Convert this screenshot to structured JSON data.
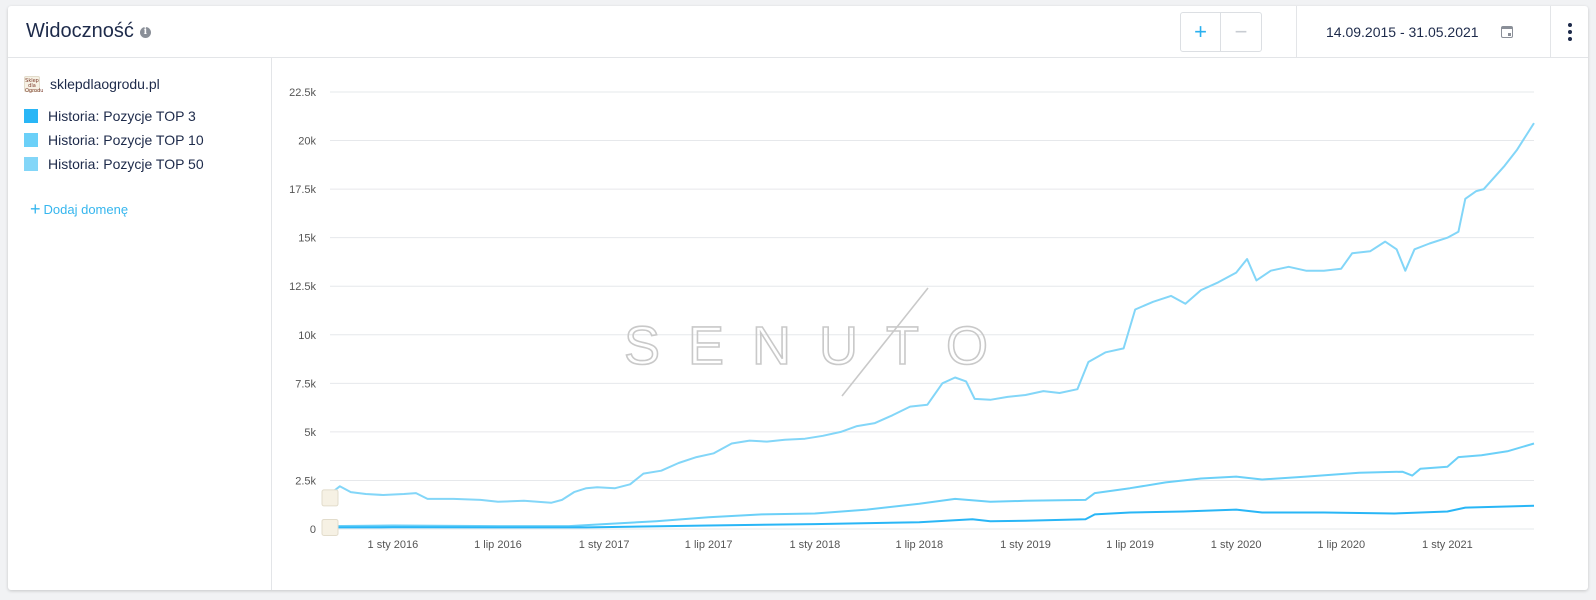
{
  "header": {
    "title": "Widoczność",
    "date_range": "14.09.2015 - 31.05.2021",
    "zoom_in": "+",
    "zoom_out": "−"
  },
  "sidebar": {
    "domain": "sklepdlaogrodu.pl",
    "favicon_text": "Sklep dla Ogrodu",
    "legend": [
      {
        "label": "Historia: Pozycje TOP 3",
        "color": "#29b6f6"
      },
      {
        "label": "Historia: Pozycje TOP 10",
        "color": "#6bd0f8"
      },
      {
        "label": "Historia: Pozycje TOP 50",
        "color": "#83d6f8"
      }
    ],
    "add_domain": "Dodaj domenę"
  },
  "chart_data": {
    "type": "line",
    "title": "Widoczność",
    "watermark": "SENUTO",
    "ylim": [
      0,
      22500
    ],
    "yticks": [
      0,
      2500,
      5000,
      7500,
      10000,
      12500,
      15000,
      17500,
      20000,
      22500
    ],
    "ytick_labels": [
      "0",
      "2.5k",
      "5k",
      "7.5k",
      "10k",
      "12.5k",
      "15k",
      "17.5k",
      "20k",
      "22.5k"
    ],
    "xlim": [
      "2015-09-14",
      "2021-05-31"
    ],
    "xticks": [
      "2016-01-01",
      "2016-07-01",
      "2017-01-01",
      "2017-07-01",
      "2018-01-01",
      "2018-07-01",
      "2019-01-01",
      "2019-07-01",
      "2020-01-01",
      "2020-07-01",
      "2021-01-01"
    ],
    "xtick_labels": [
      "1 sty 2016",
      "1 lip 2016",
      "1 sty 2017",
      "1 lip 2017",
      "1 sty 2018",
      "1 lip 2018",
      "1 sty 2019",
      "1 lip 2019",
      "1 sty 2020",
      "1 lip 2020",
      "1 sty 2021"
    ],
    "grid": true,
    "series": [
      {
        "name": "Historia: Pozycje TOP 50",
        "color": "#83d6f8",
        "points": [
          [
            "2015-09-14",
            1800
          ],
          [
            "2015-10-01",
            2200
          ],
          [
            "2015-10-20",
            1900
          ],
          [
            "2015-11-15",
            1800
          ],
          [
            "2015-12-15",
            1750
          ],
          [
            "2016-01-20",
            1800
          ],
          [
            "2016-02-10",
            1850
          ],
          [
            "2016-03-01",
            1550
          ],
          [
            "2016-04-15",
            1550
          ],
          [
            "2016-06-01",
            1500
          ],
          [
            "2016-07-01",
            1400
          ],
          [
            "2016-08-15",
            1450
          ],
          [
            "2016-10-01",
            1350
          ],
          [
            "2016-10-20",
            1500
          ],
          [
            "2016-11-10",
            1900
          ],
          [
            "2016-12-01",
            2100
          ],
          [
            "2016-12-20",
            2150
          ],
          [
            "2017-01-20",
            2100
          ],
          [
            "2017-02-15",
            2300
          ],
          [
            "2017-03-10",
            2850
          ],
          [
            "2017-04-10",
            3000
          ],
          [
            "2017-05-10",
            3400
          ],
          [
            "2017-06-10",
            3700
          ],
          [
            "2017-07-10",
            3900
          ],
          [
            "2017-08-10",
            4400
          ],
          [
            "2017-09-10",
            4550
          ],
          [
            "2017-10-10",
            4500
          ],
          [
            "2017-11-10",
            4600
          ],
          [
            "2017-12-15",
            4650
          ],
          [
            "2018-01-15",
            4800
          ],
          [
            "2018-02-15",
            5000
          ],
          [
            "2018-03-15",
            5300
          ],
          [
            "2018-04-15",
            5450
          ],
          [
            "2018-05-15",
            5850
          ],
          [
            "2018-06-15",
            6300
          ],
          [
            "2018-07-15",
            6400
          ],
          [
            "2018-08-10",
            7500
          ],
          [
            "2018-09-01",
            7800
          ],
          [
            "2018-09-20",
            7600
          ],
          [
            "2018-10-05",
            6700
          ],
          [
            "2018-11-01",
            6650
          ],
          [
            "2018-12-01",
            6800
          ],
          [
            "2019-01-01",
            6900
          ],
          [
            "2019-02-01",
            7100
          ],
          [
            "2019-03-01",
            7000
          ],
          [
            "2019-04-01",
            7200
          ],
          [
            "2019-04-20",
            8600
          ],
          [
            "2019-05-20",
            9100
          ],
          [
            "2019-06-20",
            9300
          ],
          [
            "2019-07-10",
            11300
          ],
          [
            "2019-08-10",
            11700
          ],
          [
            "2019-09-10",
            12000
          ],
          [
            "2019-10-05",
            11600
          ],
          [
            "2019-11-01",
            12300
          ],
          [
            "2019-12-01",
            12700
          ],
          [
            "2020-01-01",
            13200
          ],
          [
            "2020-01-20",
            13900
          ],
          [
            "2020-02-05",
            12800
          ],
          [
            "2020-03-01",
            13300
          ],
          [
            "2020-04-01",
            13500
          ],
          [
            "2020-05-01",
            13300
          ],
          [
            "2020-06-01",
            13300
          ],
          [
            "2020-07-01",
            13400
          ],
          [
            "2020-07-20",
            14200
          ],
          [
            "2020-08-20",
            14300
          ],
          [
            "2020-09-15",
            14800
          ],
          [
            "2020-10-05",
            14400
          ],
          [
            "2020-10-20",
            13300
          ],
          [
            "2020-11-05",
            14400
          ],
          [
            "2020-12-01",
            14700
          ],
          [
            "2021-01-01",
            15000
          ],
          [
            "2021-01-20",
            15300
          ],
          [
            "2021-02-01",
            17000
          ],
          [
            "2021-02-20",
            17400
          ],
          [
            "2021-03-05",
            17500
          ],
          [
            "2021-03-20",
            18000
          ],
          [
            "2021-04-10",
            18700
          ],
          [
            "2021-05-01",
            19500
          ],
          [
            "2021-05-31",
            20900
          ]
        ]
      },
      {
        "name": "Historia: Pozycje TOP 10",
        "color": "#6bd0f8",
        "points": [
          [
            "2015-09-14",
            150
          ],
          [
            "2016-01-01",
            180
          ],
          [
            "2016-07-01",
            150
          ],
          [
            "2016-11-01",
            150
          ],
          [
            "2017-01-01",
            250
          ],
          [
            "2017-04-01",
            400
          ],
          [
            "2017-07-01",
            600
          ],
          [
            "2017-10-01",
            750
          ],
          [
            "2018-01-01",
            800
          ],
          [
            "2018-04-01",
            1000
          ],
          [
            "2018-07-01",
            1300
          ],
          [
            "2018-09-01",
            1550
          ],
          [
            "2018-11-01",
            1400
          ],
          [
            "2019-01-01",
            1450
          ],
          [
            "2019-04-15",
            1500
          ],
          [
            "2019-05-01",
            1850
          ],
          [
            "2019-07-01",
            2100
          ],
          [
            "2019-09-01",
            2400
          ],
          [
            "2019-11-01",
            2600
          ],
          [
            "2020-01-01",
            2700
          ],
          [
            "2020-02-15",
            2550
          ],
          [
            "2020-05-01",
            2700
          ],
          [
            "2020-08-01",
            2900
          ],
          [
            "2020-10-15",
            2950
          ],
          [
            "2020-11-01",
            2750
          ],
          [
            "2020-11-15",
            3100
          ],
          [
            "2021-01-01",
            3200
          ],
          [
            "2021-01-20",
            3700
          ],
          [
            "2021-03-01",
            3800
          ],
          [
            "2021-04-15",
            4000
          ],
          [
            "2021-05-31",
            4400
          ]
        ]
      },
      {
        "name": "Historia: Pozycje TOP 3",
        "color": "#29b6f6",
        "points": [
          [
            "2015-09-14",
            80
          ],
          [
            "2016-01-01",
            90
          ],
          [
            "2016-07-01",
            80
          ],
          [
            "2016-12-01",
            80
          ],
          [
            "2017-01-01",
            100
          ],
          [
            "2017-07-01",
            180
          ],
          [
            "2018-01-01",
            250
          ],
          [
            "2018-07-01",
            350
          ],
          [
            "2018-10-01",
            500
          ],
          [
            "2018-11-01",
            400
          ],
          [
            "2019-01-01",
            420
          ],
          [
            "2019-04-15",
            500
          ],
          [
            "2019-05-01",
            750
          ],
          [
            "2019-07-01",
            850
          ],
          [
            "2019-10-01",
            900
          ],
          [
            "2020-01-01",
            1000
          ],
          [
            "2020-02-15",
            850
          ],
          [
            "2020-06-01",
            850
          ],
          [
            "2020-10-01",
            800
          ],
          [
            "2021-01-01",
            900
          ],
          [
            "2021-02-01",
            1100
          ],
          [
            "2021-05-31",
            1200
          ]
        ]
      }
    ]
  }
}
